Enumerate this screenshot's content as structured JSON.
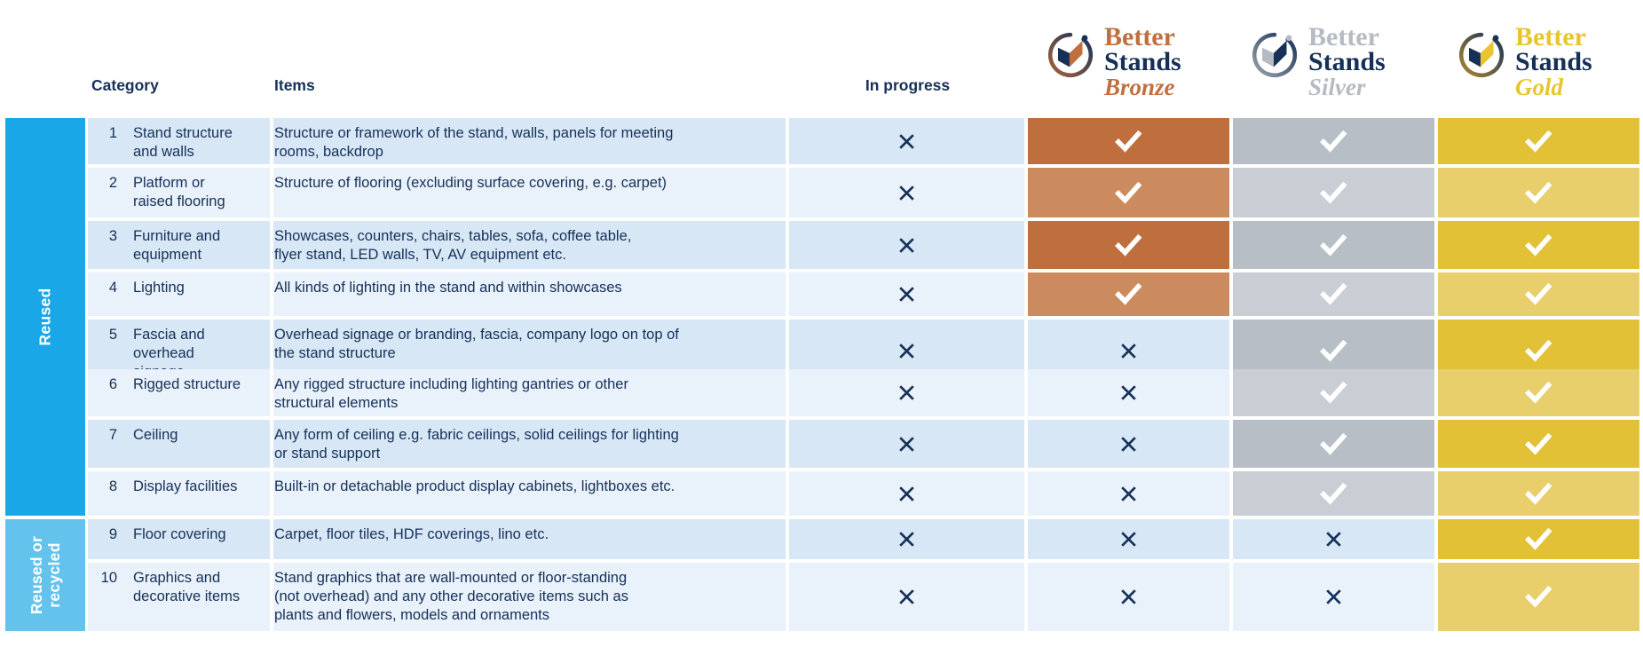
{
  "palette": {
    "navy": "#163057",
    "row_dark": "#D7E7F6",
    "row_light": "#E9F2FB",
    "sidebar_blue": "#1AA7E8",
    "sidebar_blue_light": "#63C3EC",
    "bronze_dark": "#BF6E3E",
    "bronze_light": "#CC8B5E",
    "silver_dark": "#B7BEC5",
    "silver_light": "#C9CED4",
    "gold_dark": "#E3C137",
    "gold_light": "#E9CE6C",
    "check_color": "#FFFFFF"
  },
  "header": {
    "category": "Category",
    "items": "Items",
    "in_progress": "In progress"
  },
  "logos": [
    {
      "better": "Better",
      "stands": "Stands",
      "level": "Bronze",
      "accent": "#C06F3F",
      "ring_end": "#A5633C",
      "page_left": "#163057",
      "page_right": "#C06F3F",
      "dot": "#163057"
    },
    {
      "better": "Better",
      "stands": "Stands",
      "level": "Silver",
      "accent": "#B4BBC3",
      "ring_end": "#99A3AB",
      "page_left": "#B4BBC3",
      "page_right": "#163057",
      "dot": "#B4BBC3"
    },
    {
      "better": "Better",
      "stands": "Stands",
      "level": "Gold",
      "accent": "#E8C52E",
      "ring_end": "#A8872F",
      "page_left": "#163057",
      "page_right": "#E8C52E",
      "dot": "#163057"
    }
  ],
  "sidebar": {
    "groups": [
      {
        "label": "Reused",
        "rows": "1-8"
      },
      {
        "label": "Reused or\nrecycled",
        "rows": "9-10"
      }
    ]
  },
  "rows": [
    {
      "num": "1",
      "category": "Stand structure\nand walls",
      "items": "Structure or framework of the stand, walls, panels for meeting\nrooms, backdrop",
      "marks": {
        "in_progress": "cross",
        "bronze": "check",
        "silver": "check",
        "gold": "check"
      }
    },
    {
      "num": "2",
      "category": "Platform or\nraised flooring",
      "items": "Structure of flooring (excluding surface covering, e.g. carpet)",
      "marks": {
        "in_progress": "cross",
        "bronze": "check",
        "silver": "check",
        "gold": "check"
      }
    },
    {
      "num": "3",
      "category": "Furniture and\nequipment",
      "items": "Showcases, counters, chairs, tables, sofa, coffee table,\nflyer stand, LED walls, TV, AV equipment etc.",
      "marks": {
        "in_progress": "cross",
        "bronze": "check",
        "silver": "check",
        "gold": "check"
      }
    },
    {
      "num": "4",
      "category": "Lighting",
      "items": "All kinds of lighting in the stand and within showcases",
      "marks": {
        "in_progress": "cross",
        "bronze": "check",
        "silver": "check",
        "gold": "check"
      }
    },
    {
      "num": "5",
      "category": "Fascia and overhead\nsignage",
      "items": "Overhead signage or branding, fascia, company logo on top of\nthe stand structure",
      "marks": {
        "in_progress": "cross",
        "bronze": "cross",
        "silver": "check",
        "gold": "check"
      }
    },
    {
      "num": "6",
      "category": "Rigged structure",
      "items": "Any rigged structure including lighting gantries or other\nstructural elements",
      "marks": {
        "in_progress": "cross",
        "bronze": "cross",
        "silver": "check",
        "gold": "check"
      }
    },
    {
      "num": "7",
      "category": "Ceiling",
      "items": "Any form of ceiling e.g. fabric ceilings, solid ceilings for lighting\nor stand support",
      "marks": {
        "in_progress": "cross",
        "bronze": "cross",
        "silver": "check",
        "gold": "check"
      }
    },
    {
      "num": "8",
      "category": "Display facilities",
      "items": "Built-in or detachable product display cabinets, lightboxes etc.",
      "marks": {
        "in_progress": "cross",
        "bronze": "cross",
        "silver": "check",
        "gold": "check"
      }
    },
    {
      "num": "9",
      "category": "Floor covering",
      "items": "Carpet, floor tiles, HDF coverings, lino etc.",
      "marks": {
        "in_progress": "cross",
        "bronze": "cross",
        "silver": "cross",
        "gold": "check"
      }
    },
    {
      "num": "10",
      "category": "Graphics and\ndecorative items",
      "items": "Stand graphics that are wall-mounted or floor-standing\n(not overhead) and any other decorative items such as\nplants and flowers, models and ornaments",
      "marks": {
        "in_progress": "cross",
        "bronze": "cross",
        "silver": "cross",
        "gold": "check"
      }
    }
  ],
  "chart_data": {
    "type": "table",
    "columns": [
      "Category",
      "Items",
      "In progress",
      "Better Stands Bronze",
      "Better Stands Silver",
      "Better Stands Gold"
    ],
    "row_groups": [
      {
        "label": "Reused",
        "rows": [
          1,
          2,
          3,
          4,
          5,
          6,
          7,
          8
        ]
      },
      {
        "label": "Reused or recycled",
        "rows": [
          9,
          10
        ]
      }
    ],
    "marks_matrix_in_progress_bronze_silver_gold": [
      [
        "cross",
        "check",
        "check",
        "check"
      ],
      [
        "cross",
        "check",
        "check",
        "check"
      ],
      [
        "cross",
        "check",
        "check",
        "check"
      ],
      [
        "cross",
        "check",
        "check",
        "check"
      ],
      [
        "cross",
        "cross",
        "check",
        "check"
      ],
      [
        "cross",
        "cross",
        "check",
        "check"
      ],
      [
        "cross",
        "cross",
        "check",
        "check"
      ],
      [
        "cross",
        "cross",
        "check",
        "check"
      ],
      [
        "cross",
        "cross",
        "cross",
        "check"
      ],
      [
        "cross",
        "cross",
        "cross",
        "check"
      ]
    ]
  }
}
